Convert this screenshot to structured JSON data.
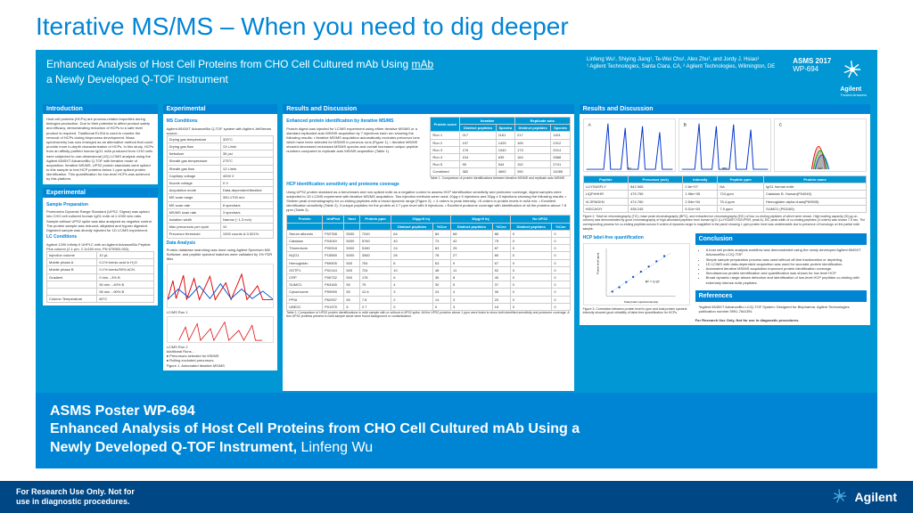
{
  "slide": {
    "title": "Iterative MS/MS – When you need to dig deeper"
  },
  "poster": {
    "title_line1": "Enhanced Analysis of Host Cell Proteins from CHO Cell Cultured mAb Using",
    "title_line2": "a Newly Developed Q-TOF Instrument",
    "authors": "Linfeng Wu¹, Shiying Jiang¹, Te-Wei Chu¹, Alex Zhu², and Jordy J. Hsiao¹",
    "affil": "¹ Agilent Technologies, Santa Clara, CA, ² Agilent Technologies, Wilmington, DE",
    "meta1": "ASMS 2017",
    "meta2": "WP-694",
    "brand": "Agilent",
    "brand_sub": "Trusted Answers",
    "sections": {
      "intro": "Introduction",
      "sample": "Sample Preparation",
      "exp": "Experimental",
      "exp2": "Experimental",
      "results": "Results and Discussion",
      "results2": "Results and Discussion",
      "conclusion": "Conclusion",
      "refs": "References"
    },
    "intro_text": "Host cell proteins (HCPs) are process-related impurities during biologics production. Due to their potential to affect product safety and efficacy, demonstrating reduction of HCPs to a safe level product is required. Traditional ELISA is used to monitor the removal of HCPs during bioprocess development. Mass spectrometry has now emerged as an alternative method that could provide more in-depth characterization of HCPs. In this study, HCPs from an affinity-purified human IgG1 mAb produced from CHO cells were subjected to one-dimensional (1D) LC/MS analysis using the Agilent 6545XT AdvanceBio Q-TOF with iterative mode of acquisition. Iterative MS/MS, UPS2 protein standards were spiked to this sample to test HCP proteins below 1 ppm spiked protein identification. This quantification for low-level HCPs was achieved by this platform.",
    "sample_text": "Proteomics Dynamic Range Standard (UPS2, Sigma) was spiked into CHO cell cultured human IgG1 mAb at 1:1000 w/w ratio. Sample without UPS2 spike was also analyzed as negative control. The protein sample was reduced, alkylated and trypsin digested. Digested sample was directly injected for 1D LC/MS experiment.",
    "lc_cond": "LC Conditions",
    "lc_text": "Agilent 1290 Infinity II UHPLC with an Agilent AdvanceBio Peptide Plus column (2.1 µm, 2.1x150 mm, PN 675950-902).",
    "ms_cond": "MS Conditions",
    "ms_text": "Agilent 6545XT AdvanceBio Q-TOF system with Agilent JetStream source.",
    "lc_table": {
      "rows": [
        [
          "Injection volume",
          "10 µL"
        ],
        [
          "Mobile phase A",
          "0.1% formic acid in H₂O"
        ],
        [
          "Mobile phase B",
          "0.1% formic/90% ACN"
        ],
        [
          "Gradient",
          "0 min→3% B"
        ],
        [
          "",
          "50 min→40% B"
        ],
        [
          "",
          "55 min→90% B"
        ],
        [
          "Column Temperature",
          "60°C"
        ]
      ]
    },
    "ms_table": {
      "rows": [
        [
          "Drying gas temperature",
          "325°C"
        ],
        [
          "Drying gas flow",
          "13 L/min"
        ],
        [
          "Nebulizer",
          "35 psi"
        ],
        [
          "Sheath gas temperature",
          "275°C"
        ],
        [
          "Sheath gas flow",
          "12 L/min"
        ],
        [
          "Capillary voltage",
          "4000 V"
        ],
        [
          "Nozzle voltage",
          "0 V"
        ],
        [
          "Acquisition mode",
          "Data-dependent/iterative"
        ],
        [
          "MS scan range",
          "300-1700 m/z"
        ],
        [
          "MS scan rate",
          "8 spectra/s"
        ],
        [
          "MS/MS scan rate",
          "3 spectra/s"
        ],
        [
          "Isolation width",
          "Narrow (~1.3 m/z)"
        ],
        [
          "Max precursors per cycle",
          "10"
        ],
        [
          "Precursor threshold",
          "1000 counts & 0.001%"
        ]
      ]
    },
    "data_analysis": "Data Analysis",
    "data_text": "Protein database searching was done using Agilent Spectrum Mill Software; and peptide spectral matches were validated by 1% FDR filter.",
    "fig1_caption": "Figure 1. Automated iterative MS/MS",
    "fig1_labels": {
      "run1": "LC/MS Run 1",
      "run2": "LC/MS Run 2",
      "runs": "Additional Runs...",
      "leg1": "Precursors selected for MS/MS",
      "leg2": "Rolling excluded precursors"
    },
    "enh_hdr": "Enhanced protein identification by iterative MS/MS",
    "enh_text": "Protein digest was injected for LC/MS experiment using either iterative MS/MS or a standard replicated auto MS/MS acquisition by 7 injections each run showing the following results: • Iterative MS/MS acquisition automatically excludes precursor ions which have been selected for MS/MS in previous runs (Figure 1). • Iterative MS/MS showed decreased redundant MS/MS spectra and overall increased unique peptide numbers compared to replicate auto MS/MS acquisition (Table 1).",
    "table1_caption": "Table 1. Comparison of protein identifications between iterative MS/MS and replicate auto MS/MS",
    "hcp_hdr": "HCP identification sensitivity and proteome coverage",
    "hcp_text": "Using UPS2 protein standard as a benchmark and non-spiked mAb as a negative control to assess HCP identification sensitivity and proteome coverage, digest samples were subjected to 1D LC/MS experiment with iterative MS/MS acquisition. Two injection methods were used; 20µg x 5 injections and 30µg x 5 injections showing the following results: • Sixteen peak chromatography for co-eluting peptides with a broad dynamic range (Figure 2); > 4 orders in peak intensity, >5 orders in protein levels in mAb mix. • Excellent identification sensitivity (Table 2); 3 unique peptides for the protein at 2.7 ppm level with 5 injections. • Excellent proteome coverage with identification of all the proteins above 7.8 ppm (Table 2).",
    "table2_caption": "Table 2. Comparison of UPS2 protein identifications in mAb sample with or without a UPS2 spike. All the UPS2 proteins above 1 ppm were listed to show both identified sensitivity and proteome coverage. A few UPS2 proteins present in mAb sample alone were found background or contamination.",
    "fig2_caption": "Figure 2. Total ion chromatography (TIC), base peak chromatography (BPC), and extracted ion chromatography (EIC) of four co-eluting peptides of which were shown. High loading capacity (30 µg on-column) was demonstrated by good chromatography of high-abundant peptides from human IgG1 (LLIYSASFLYSGVPSR, peak A). EIC peak width of co-eluting peptides (4 orders) was shown 7.5 sec. The corresponding process for co-eluting peptides across 5 orders of dynamic range is magnified in the panel showing 1 ppm protein level was undetectable due to presence of homologs on the partial mAb sample.",
    "hcp_lf": "HCP label-free quantification",
    "fig3_caption": "Figure 3. Correlation between protein level in ppm and total protein spectral intensity showed good reliability of label-free quantification for HCPs.",
    "scatter_xlabel": "Total protein spectral intensity",
    "scatter_ylabel": "Protein level (ppm)",
    "scatter_r": "R² = 0.97",
    "concl_bullets": [
      "A host cell protein analysis workflow was demonstrated using the newly developed Agilent 6545XT AdvanceBio LC/Q-TOF.",
      "Simple sample preparation process was used without off-line fractionation or depleting.",
      "1D LC/MS with data-dependent acquisition was used for accurate protein identification.",
      "Automated iterative MS/MS acquisition improved protein identification coverage.",
      "Simultaneous protein identification and quantification was shown for low level HCP.",
      "Broad dynamic range allows detection and identification of low-level HCP peptides co-eluting with extremely intense mAb peptides."
    ],
    "ref_text": "¹Agilent 6545XT AdvanceBio LC/Q-TOF System: Designed for Biopharma. Agilent Technologies publication number 5991-7641EN.",
    "disclaimer": "For Research Use Only. Not for use in diagnostic procedures.",
    "pep_table": {
      "hdr": [
        "Peptide",
        "Precursor (m/z)",
        "Intensity",
        "Peptide ppm",
        "Protein name"
      ],
      "rows": [
        [
          "LLIYSASFLY",
          "842.965",
          "2.6e+07",
          "NA",
          "IgG1 human mAb"
        ],
        [
          "LIQFHHHR",
          "479.759",
          "1.96e+05",
          "724 ppm",
          "Catalase B. Human(P04040)"
        ],
        [
          "VLSPADKN",
          "474.760",
          "2.54e+04",
          "75.4 ppm",
          "Hemoglobin alpha chain(P69905)"
        ],
        [
          "HIDCASIY",
          "538.245",
          "6.01e+03",
          "7.5 ppm",
          "SUMO1 (P63165)"
        ]
      ]
    }
  },
  "caption": {
    "line1": "ASMS Poster WP-694",
    "line2a": "Enhanced Analysis of Host Cell Proteins from CHO Cell Cultured mAb Using a",
    "line2b": "Newly Developed Q-TOF Instrument, ",
    "author": "Linfeng Wu"
  },
  "footer": {
    "left_l1": "For Research Use Only. Not for",
    "left_l2": "use in diagnostic procedures.",
    "brand": "Agilent"
  },
  "colors": {
    "agilent_blue": "#0085d5",
    "header_blue": "#0097d4",
    "dark_blue": "#004785"
  }
}
